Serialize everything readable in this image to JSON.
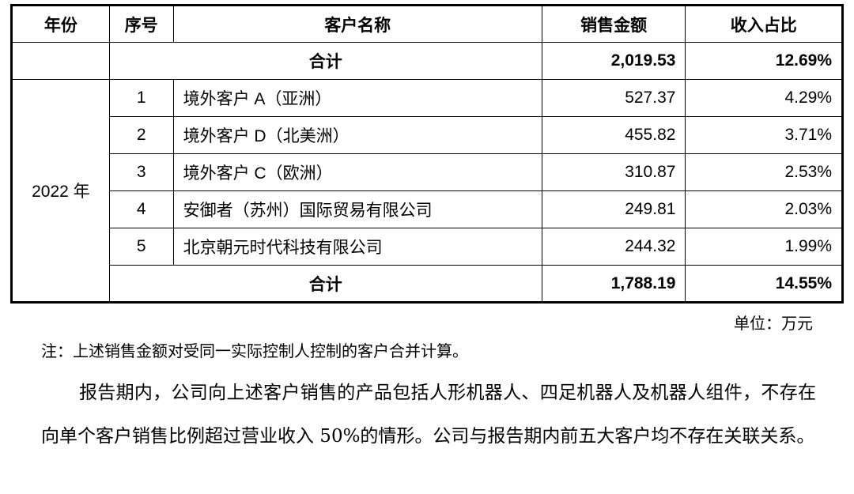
{
  "table": {
    "headers": [
      "年份",
      "序号",
      "客户名称",
      "销售金额",
      "收入占比"
    ],
    "prev_total": {
      "label": "合计",
      "amount": "2,019.53",
      "ratio": "12.69%"
    },
    "year": "2022 年",
    "rows": [
      {
        "no": "1",
        "name": "境外客户 A（亚洲）",
        "amount": "527.37",
        "ratio": "4.29%"
      },
      {
        "no": "2",
        "name": "境外客户 D（北美洲）",
        "amount": "455.82",
        "ratio": "3.71%"
      },
      {
        "no": "3",
        "name": "境外客户 C（欧洲）",
        "amount": "310.87",
        "ratio": "2.53%"
      },
      {
        "no": "4",
        "name": "安御者（苏州）国际贸易有限公司",
        "amount": "249.81",
        "ratio": "2.03%"
      },
      {
        "no": "5",
        "name": "北京朝元时代科技有限公司",
        "amount": "244.32",
        "ratio": "1.99%"
      }
    ],
    "total": {
      "label": "合计",
      "amount": "1,788.19",
      "ratio": "14.55%"
    }
  },
  "unit": "单位：万元",
  "note": "注：上述销售金额对受同一实际控制人控制的客户合并计算。",
  "paragraph": "报告期内，公司向上述客户销售的产品包括人形机器人、四足机器人及机器人组件，不存在向单个客户销售比例超过营业收入 50%的情形。公司与报告期内前五大客户均不存在关联关系。"
}
